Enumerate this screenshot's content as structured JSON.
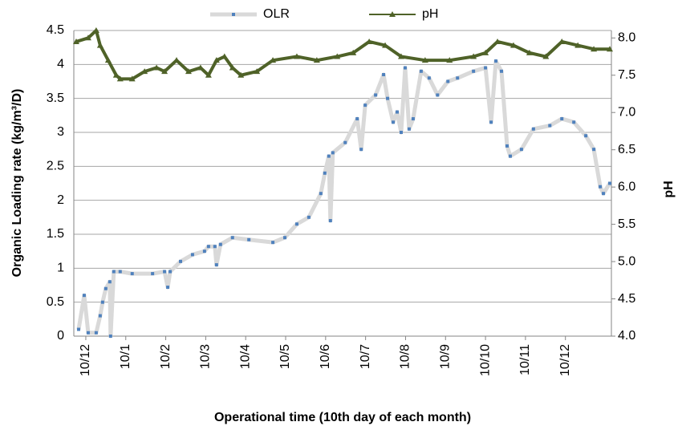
{
  "chart_data": {
    "type": "line",
    "xlabel": "Operational time (10th day of each month)",
    "ylabel": "Organic Loading rate (kg/m³/D)",
    "y2label": "pH",
    "xlim": [
      -0.3,
      13.15
    ],
    "xticks": [
      {
        "value": 0,
        "label": "10/12"
      },
      {
        "value": 1,
        "label": "10/1"
      },
      {
        "value": 2,
        "label": "10/2"
      },
      {
        "value": 3,
        "label": "10/3"
      },
      {
        "value": 4,
        "label": "10/4"
      },
      {
        "value": 5,
        "label": "10/5"
      },
      {
        "value": 6,
        "label": "10/6"
      },
      {
        "value": 7,
        "label": "10/7"
      },
      {
        "value": 8,
        "label": "10/8"
      },
      {
        "value": 9,
        "label": "10/9"
      },
      {
        "value": 10,
        "label": "10/10"
      },
      {
        "value": 11,
        "label": "10/11"
      },
      {
        "value": 12,
        "label": "10/12"
      }
    ],
    "ylim": [
      0,
      4.5
    ],
    "yticks": [
      0,
      0.5,
      1,
      1.5,
      2,
      2.5,
      3,
      3.5,
      4,
      4.5
    ],
    "y2lim": [
      4,
      8.1
    ],
    "y2ticks": [
      {
        "value": 4,
        "label": "4.0"
      },
      {
        "value": 4.5,
        "label": "4.5"
      },
      {
        "value": 5,
        "label": "5.0"
      },
      {
        "value": 5.5,
        "label": "5.5"
      },
      {
        "value": 6,
        "label": "6.0"
      },
      {
        "value": 6.5,
        "label": "6.5"
      },
      {
        "value": 7,
        "label": "7.0"
      },
      {
        "value": 7.5,
        "label": "7.5"
      },
      {
        "value": 8,
        "label": "8.0"
      }
    ],
    "grid": true,
    "legend": "top",
    "series": [
      {
        "name": "OLR",
        "color": "#d9d9d9",
        "marker_color": "#4f81bd",
        "marker": "square",
        "x": [
          -0.18,
          -0.04,
          0.06,
          0.26,
          0.36,
          0.42,
          0.5,
          0.6,
          0.62,
          0.7,
          0.86,
          1.16,
          1.67,
          1.97,
          2.05,
          2.11,
          2.37,
          2.67,
          2.97,
          3.07,
          3.23,
          3.27,
          3.37,
          3.67,
          4.08,
          4.68,
          4.98,
          5.28,
          5.58,
          5.88,
          5.98,
          6.08,
          6.12,
          6.18,
          6.49,
          6.79,
          6.89,
          6.99,
          7.25,
          7.45,
          7.55,
          7.69,
          7.79,
          7.89,
          7.99,
          8.09,
          8.19,
          8.39,
          8.59,
          8.8,
          9.06,
          9.3,
          9.7,
          10.0,
          10.14,
          10.26,
          10.4,
          10.54,
          10.62,
          10.9,
          11.2,
          11.61,
          11.91,
          12.21,
          12.51,
          12.71,
          12.87,
          12.95,
          13.11
        ],
        "values": [
          0.1,
          0.6,
          0.05,
          0.05,
          0.3,
          0.5,
          0.7,
          0.8,
          0.0,
          0.95,
          0.95,
          0.92,
          0.92,
          0.95,
          0.72,
          0.95,
          1.1,
          1.2,
          1.25,
          1.32,
          1.32,
          1.05,
          1.35,
          1.45,
          1.42,
          1.38,
          1.45,
          1.65,
          1.75,
          2.1,
          2.4,
          2.65,
          1.7,
          2.7,
          2.85,
          3.2,
          2.75,
          3.4,
          3.55,
          3.85,
          3.5,
          3.15,
          3.3,
          3.0,
          3.95,
          3.05,
          3.2,
          3.9,
          3.8,
          3.55,
          3.75,
          3.8,
          3.9,
          3.95,
          3.15,
          4.05,
          3.9,
          2.8,
          2.65,
          2.75,
          3.05,
          3.1,
          3.2,
          3.15,
          2.95,
          2.75,
          2.2,
          2.1,
          2.25
        ]
      },
      {
        "name": "pH",
        "color": "#4f6228",
        "marker_color": "#4f6228",
        "marker": "triangle",
        "axis": "y2",
        "x": [
          -0.24,
          0.06,
          0.26,
          0.36,
          0.56,
          0.76,
          0.86,
          1.16,
          1.47,
          1.77,
          1.97,
          2.27,
          2.57,
          2.87,
          3.07,
          3.27,
          3.47,
          3.67,
          3.88,
          4.28,
          4.68,
          5.28,
          5.78,
          6.29,
          6.69,
          7.09,
          7.49,
          7.89,
          8.49,
          9.1,
          9.7,
          10.0,
          10.3,
          10.7,
          11.1,
          11.51,
          11.91,
          12.31,
          12.71,
          13.11
        ],
        "values": [
          7.95,
          8.0,
          8.1,
          7.9,
          7.7,
          7.5,
          7.45,
          7.45,
          7.55,
          7.6,
          7.55,
          7.7,
          7.55,
          7.6,
          7.5,
          7.7,
          7.75,
          7.6,
          7.5,
          7.55,
          7.7,
          7.75,
          7.7,
          7.75,
          7.8,
          7.95,
          7.9,
          7.75,
          7.7,
          7.7,
          7.75,
          7.8,
          7.95,
          7.9,
          7.8,
          7.75,
          7.95,
          7.9,
          7.85,
          7.85
        ]
      }
    ]
  }
}
